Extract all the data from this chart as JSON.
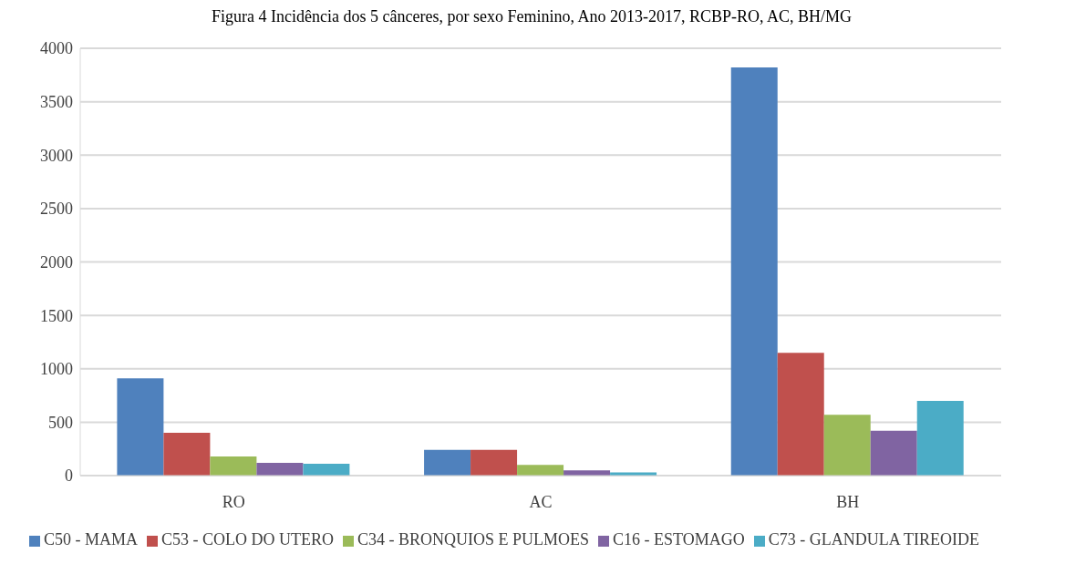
{
  "chart_data": {
    "type": "bar",
    "title": "Figura 4 Incidência dos 5 cânceres, por sexo Feminino, Ano 2013-2017, RCBP-RO, AC, BH/MG",
    "categories": [
      "RO",
      "AC",
      "BH"
    ],
    "series": [
      {
        "name": "C50 - MAMA",
        "color": "#4f81bd",
        "values": [
          910,
          240,
          3820
        ]
      },
      {
        "name": "C53 - COLO DO UTERO",
        "color": "#c0504d",
        "values": [
          400,
          240,
          1150
        ]
      },
      {
        "name": "C34 - BRONQUIOS E PULMOES",
        "color": "#9bbb59",
        "values": [
          180,
          100,
          570
        ]
      },
      {
        "name": "C16 - ESTOMAGO",
        "color": "#8064a2",
        "values": [
          120,
          50,
          420
        ]
      },
      {
        "name": "C73 - GLANDULA TIREOIDE",
        "color": "#4bacc6",
        "values": [
          110,
          30,
          700
        ]
      }
    ],
    "ylim": [
      0,
      4000
    ],
    "yticks": [
      0,
      500,
      1000,
      1500,
      2000,
      2500,
      3000,
      3500,
      4000
    ],
    "grid": "y",
    "legend": "bottom"
  }
}
